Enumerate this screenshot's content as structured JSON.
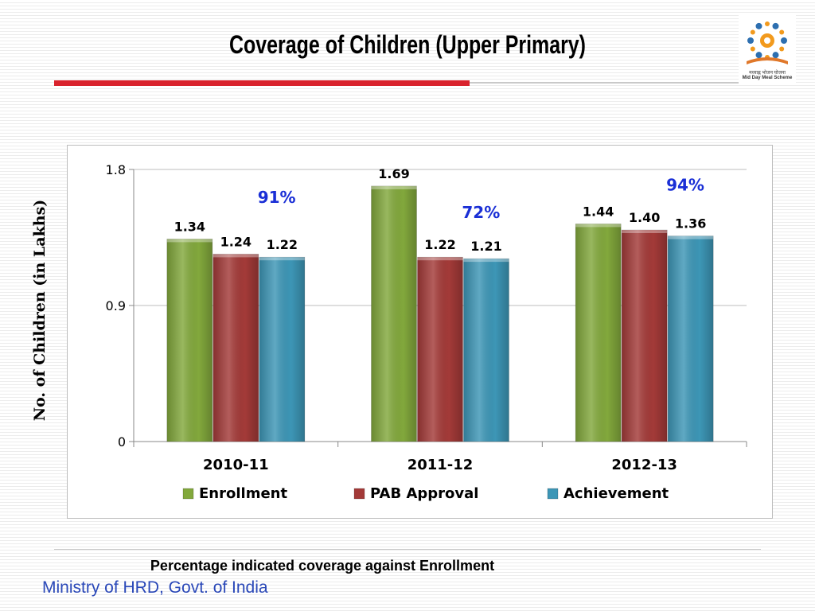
{
  "slide": {
    "title": "Coverage of Children  (Upper Primary)",
    "logo_caption_line1": "मध्याह्न भोजन योजना",
    "logo_caption_line2": "Mid Day Meal Scheme",
    "footnote": "Percentage indicated coverage against  Enrollment",
    "footer": "Ministry of HRD, Govt. of India",
    "accent_red": "#d9232d",
    "footer_color": "#2a48b8"
  },
  "chart_data": {
    "type": "bar",
    "title": "",
    "xlabel": "",
    "ylabel": "No. of Children (in Lakhs)",
    "ylim": [
      0,
      1.8
    ],
    "yticks": [
      "0",
      "0.9",
      "1.8"
    ],
    "grid": true,
    "legend_position": "bottom",
    "categories": [
      "2010-11",
      "2011-12",
      "2012-13"
    ],
    "series": [
      {
        "name": "Enrollment",
        "color": "#82a83c",
        "values": [
          1.34,
          1.69,
          1.44
        ],
        "labels": [
          "1.34",
          "1.69",
          "1.44"
        ]
      },
      {
        "name": "PAB Approval",
        "color": "#a33a38",
        "values": [
          1.24,
          1.22,
          1.4
        ],
        "labels": [
          "1.24",
          "1.22",
          "1.40"
        ]
      },
      {
        "name": "Achievement",
        "color": "#3d96b6",
        "values": [
          1.22,
          1.21,
          1.36
        ],
        "labels": [
          "1.22",
          "1.21",
          "1.36"
        ]
      }
    ],
    "annotations": [
      {
        "category": "2010-11",
        "text": "91%",
        "color": "#1a2fd6"
      },
      {
        "category": "2011-12",
        "text": "72%",
        "color": "#1a2fd6"
      },
      {
        "category": "2012-13",
        "text": "94%",
        "color": "#1a2fd6"
      }
    ]
  }
}
